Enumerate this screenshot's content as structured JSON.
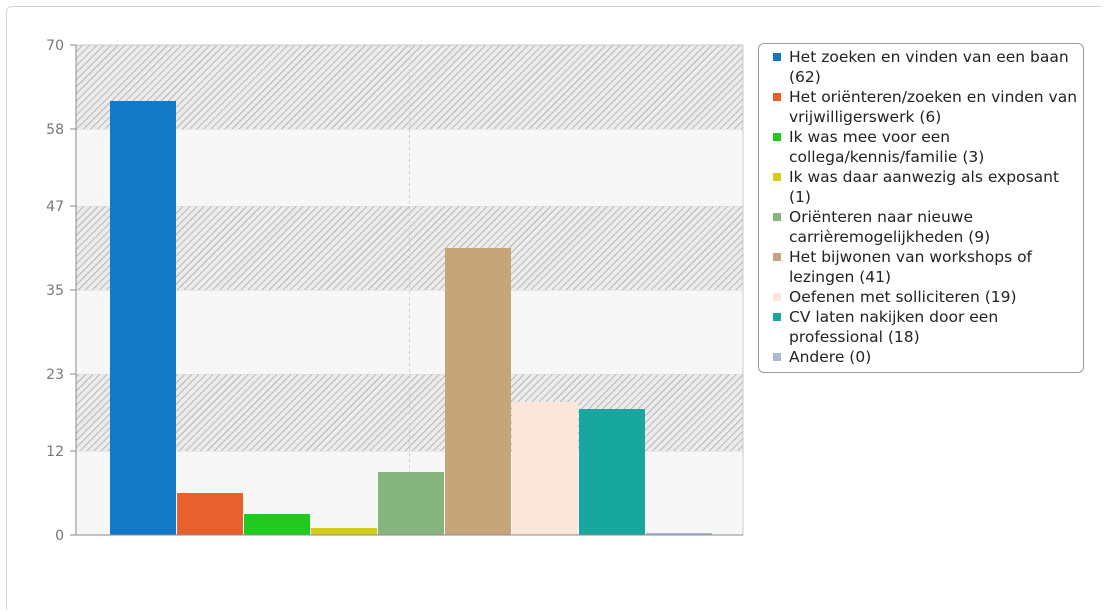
{
  "chart_data": {
    "type": "bar",
    "categories": [
      "Het zoeken en vinden van een baan (62)",
      "Het oriënteren/zoeken en vinden van vrijwilligerswerk (6)",
      "Ik was mee voor een collega/kennis/familie (3)",
      "Ik was daar aanwezig als exposant (1)",
      "Oriënteren naar nieuwe carrièremogelijkheden (9)",
      "Het bijwonen van workshops of lezingen (41)",
      "Oefenen met solliciteren (19)",
      "CV laten nakijken door een professional (18)",
      "Andere (0)"
    ],
    "values": [
      62,
      6,
      3,
      1,
      9,
      41,
      19,
      18,
      0
    ],
    "colors": [
      "#1379c6",
      "#e9602f",
      "#1fcb1f",
      "#d3cc19",
      "#86b47f",
      "#c7a57a",
      "#fbe6dc",
      "#17a79f",
      "#a9b9d9"
    ],
    "ylim": [
      0,
      70
    ],
    "yticks": [
      0,
      12,
      23,
      35,
      47,
      58,
      70
    ],
    "title": "",
    "xlabel": "",
    "ylabel": "",
    "legend_position": "right",
    "grid": true
  }
}
